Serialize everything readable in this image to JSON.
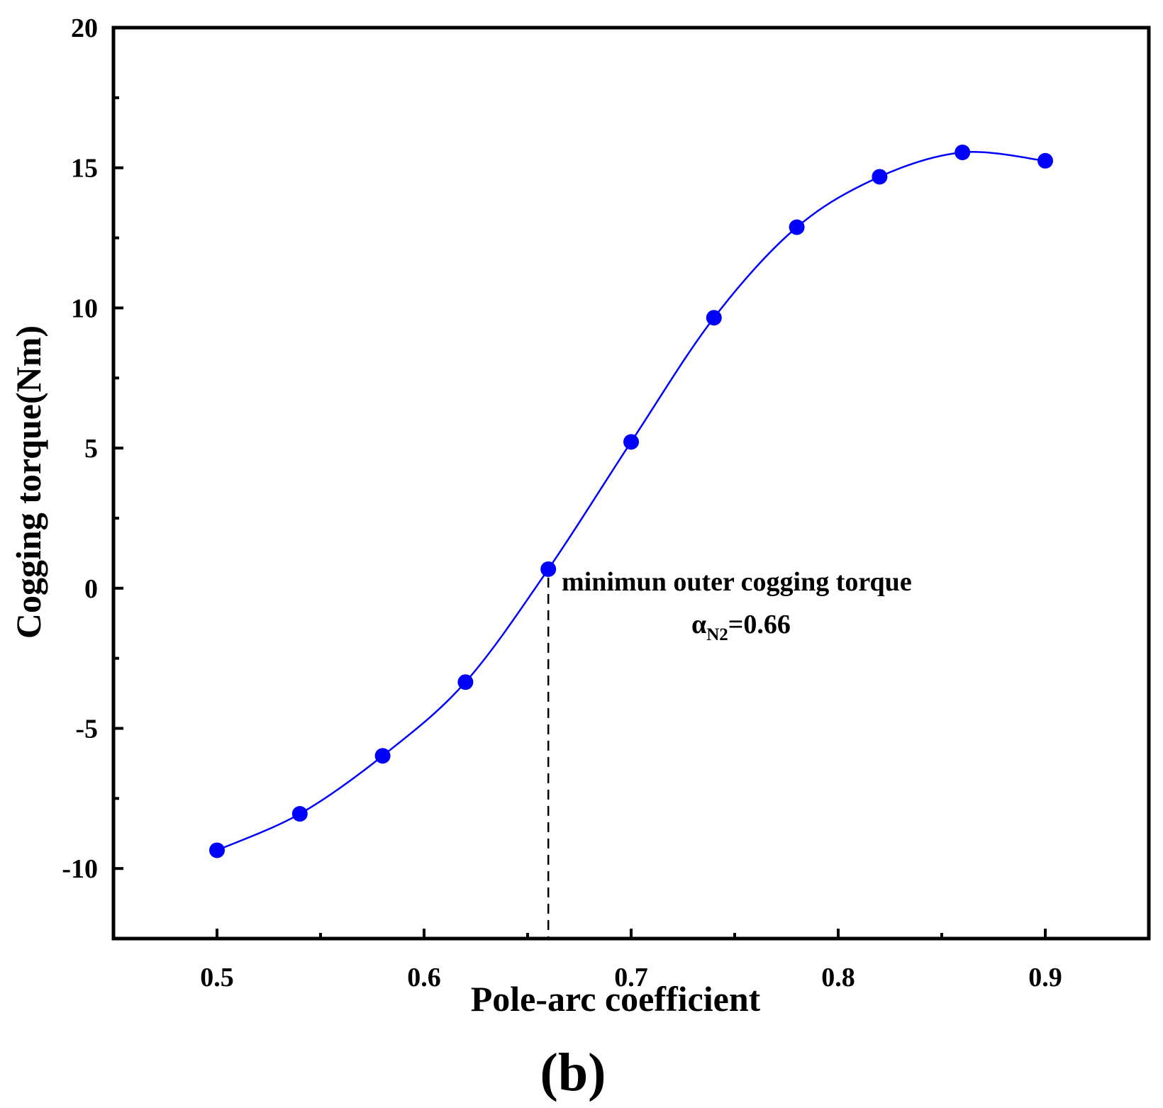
{
  "chart_data": {
    "type": "line",
    "title": "",
    "xlabel": "Pole-arc coefficient",
    "ylabel": "Cogging torque(Nm)",
    "xlim": [
      0.45,
      0.95
    ],
    "ylim": [
      -12.5,
      20
    ],
    "xticks": [
      0.5,
      0.6,
      0.7,
      0.8,
      0.9
    ],
    "xtick_labels": [
      "0.5",
      "0.6",
      "0.7",
      "0.8",
      "0.9"
    ],
    "yticks": [
      -10,
      -5,
      0,
      5,
      10,
      15,
      20
    ],
    "ytick_labels": [
      "-10",
      "-5",
      "0",
      "5",
      "10",
      "15",
      "20"
    ],
    "series": [
      {
        "name": "Cogging torque",
        "color": "#0000ff",
        "x": [
          0.5,
          0.54,
          0.58,
          0.62,
          0.66,
          0.7,
          0.74,
          0.78,
          0.82,
          0.86,
          0.9
        ],
        "y": [
          -9.35,
          -8.05,
          -5.98,
          -3.35,
          0.68,
          5.22,
          9.65,
          12.88,
          14.68,
          15.55,
          15.25
        ]
      }
    ],
    "annotations": {
      "marker_x": 0.66,
      "marker_y": 0.68,
      "line1": "minimun outer cogging torque",
      "alpha_symbol": "α",
      "alpha_subscript": "N2",
      "alpha_value": "=0.66"
    },
    "panel_label": "(b)",
    "grid": false
  }
}
